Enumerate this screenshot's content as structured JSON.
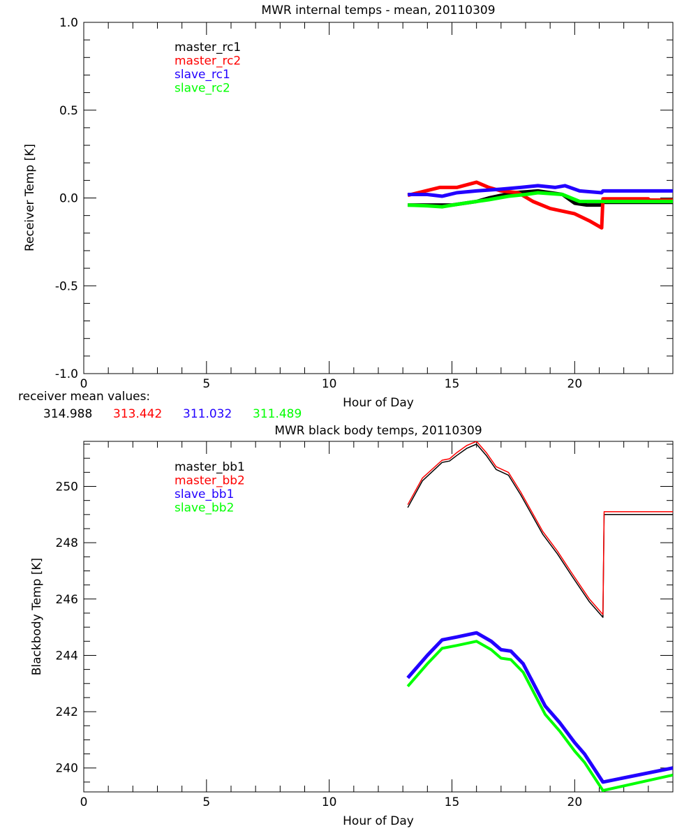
{
  "colors": {
    "black": "#000000",
    "red": "#ff0000",
    "blue": "#2200ff",
    "green": "#00ff00"
  },
  "receiver_means": {
    "label": "receiver mean values:",
    "values": [
      "314.988",
      "313.442",
      "311.032",
      "311.489"
    ]
  },
  "chart_data": [
    {
      "type": "line",
      "title": "MWR internal temps - mean, 20110309",
      "xlabel": "Hour of Day",
      "ylabel": "Receiver Temp [K]",
      "xlim": [
        0,
        24
      ],
      "ylim": [
        -1.0,
        1.0
      ],
      "xticks": [
        "0",
        "5",
        "10",
        "15",
        "20"
      ],
      "yticks": [
        "-1.0",
        "-0.5",
        "0.0",
        "0.5",
        "1.0"
      ],
      "legend_position": "top-left",
      "series": [
        {
          "name": "master_rc1",
          "color": "#000000",
          "width": 5,
          "x": [
            13.2,
            14,
            15,
            16,
            16.5,
            17.5,
            18.5,
            19.5,
            20,
            20.5,
            21.1,
            21.15,
            24
          ],
          "y": [
            -0.04,
            -0.04,
            -0.04,
            -0.02,
            0.0,
            0.03,
            0.04,
            0.02,
            -0.03,
            -0.04,
            -0.04,
            -0.025,
            -0.025
          ]
        },
        {
          "name": "master_rc2",
          "color": "#ff0000",
          "width": 5,
          "x": [
            13.2,
            14.5,
            15.2,
            16,
            16.5,
            17,
            17.7,
            18.3,
            19,
            20,
            20.6,
            21.1,
            21.15,
            23,
            23.05,
            24
          ],
          "y": [
            0.015,
            0.06,
            0.06,
            0.09,
            0.06,
            0.04,
            0.03,
            -0.02,
            -0.06,
            -0.09,
            -0.13,
            -0.17,
            -0.005,
            -0.005,
            -0.012,
            -0.012
          ]
        },
        {
          "name": "slave_rc1",
          "color": "#2200ff",
          "width": 5,
          "x": [
            13.2,
            14,
            14.6,
            15.2,
            16,
            17,
            17.8,
            18.5,
            19.2,
            19.6,
            20.2,
            21.1,
            21.15,
            24
          ],
          "y": [
            0.02,
            0.02,
            0.01,
            0.03,
            0.04,
            0.05,
            0.06,
            0.07,
            0.06,
            0.07,
            0.04,
            0.03,
            0.04,
            0.04
          ]
        },
        {
          "name": "slave_rc2",
          "color": "#00ff00",
          "width": 5,
          "x": [
            13.2,
            14,
            14.6,
            15.5,
            16.5,
            17.3,
            18,
            18.5,
            19.5,
            20.2,
            21.1,
            21.15,
            24
          ],
          "y": [
            -0.04,
            -0.045,
            -0.05,
            -0.03,
            -0.01,
            0.01,
            0.02,
            0.03,
            0.02,
            -0.02,
            -0.02,
            -0.02,
            -0.02
          ]
        }
      ]
    },
    {
      "type": "line",
      "title": "MWR black body temps, 20110309",
      "xlabel": "Hour of Day",
      "ylabel": "Blackbody Temp [K]",
      "xlim": [
        0,
        24
      ],
      "ylim": [
        239.15,
        251.6
      ],
      "xticks": [
        "0",
        "5",
        "10",
        "15",
        "20"
      ],
      "yticks": [
        "240",
        "242",
        "244",
        "246",
        "248",
        "250"
      ],
      "legend_position": "top-left",
      "series": [
        {
          "name": "master_bb1",
          "color": "#000000",
          "width": 1.5,
          "x": [
            13.2,
            13.8,
            14.6,
            14.9,
            15.2,
            15.6,
            16,
            16.4,
            16.8,
            17.3,
            17.8,
            18.7,
            19.3,
            19.9,
            20.6,
            21.15,
            21.2,
            24
          ],
          "y": [
            249.25,
            250.2,
            250.85,
            250.9,
            251.1,
            251.35,
            251.5,
            251.1,
            250.6,
            250.4,
            249.7,
            248.3,
            247.6,
            246.8,
            245.9,
            245.35,
            249.0,
            249.0
          ]
        },
        {
          "name": "master_bb2",
          "color": "#ff0000",
          "width": 1.5,
          "x": [
            13.2,
            13.8,
            14.6,
            14.9,
            15.2,
            15.6,
            16,
            16.4,
            16.8,
            17.3,
            17.8,
            18.7,
            19.3,
            19.9,
            20.6,
            21.15,
            21.2,
            24
          ],
          "y": [
            249.35,
            250.3,
            250.93,
            250.98,
            251.2,
            251.45,
            251.6,
            251.2,
            250.7,
            250.5,
            249.8,
            248.4,
            247.7,
            246.9,
            246.0,
            245.45,
            249.1,
            249.1
          ]
        },
        {
          "name": "slave_bb1",
          "color": "#2200ff",
          "width": 5,
          "x": [
            13.2,
            14,
            14.6,
            15.2,
            16,
            16.6,
            17,
            17.4,
            17.9,
            18.8,
            19.4,
            20,
            20.4,
            21.15,
            24
          ],
          "y": [
            243.2,
            244.0,
            244.55,
            244.65,
            244.8,
            244.5,
            244.2,
            244.15,
            243.7,
            242.2,
            241.6,
            240.9,
            240.5,
            239.5,
            240.0
          ]
        },
        {
          "name": "slave_bb2",
          "color": "#00ff00",
          "width": 4,
          "x": [
            13.2,
            14,
            14.6,
            15.2,
            16,
            16.6,
            17,
            17.4,
            17.9,
            18.8,
            19.4,
            20,
            20.4,
            21.15,
            24
          ],
          "y": [
            242.9,
            243.7,
            244.25,
            244.35,
            244.5,
            244.2,
            243.9,
            243.85,
            243.4,
            241.9,
            241.3,
            240.6,
            240.2,
            239.2,
            239.75
          ]
        }
      ]
    }
  ]
}
